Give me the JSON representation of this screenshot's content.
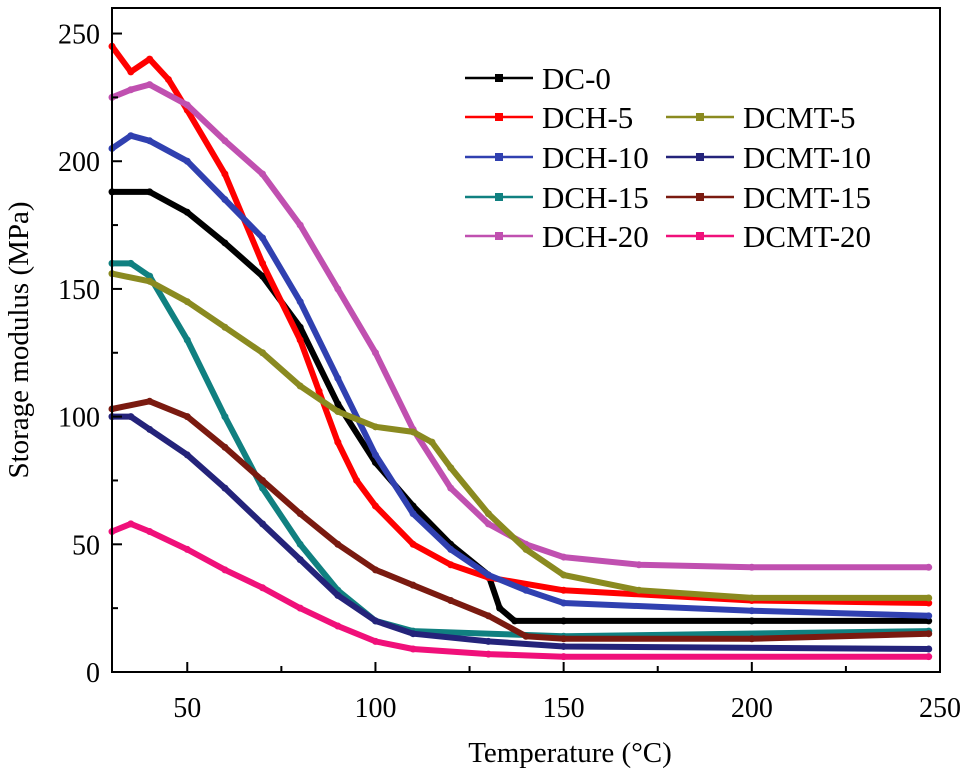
{
  "chart_data": {
    "type": "line",
    "title": "",
    "xlabel": "Temperature (°C)",
    "ylabel": "Storage modulus (MPa)",
    "xlim": [
      30,
      250
    ],
    "ylim": [
      0,
      260
    ],
    "xticks": [
      50,
      100,
      150,
      200,
      250
    ],
    "yticks": [
      0,
      50,
      100,
      150,
      200,
      250
    ],
    "grid": false,
    "legend_position": "top-right",
    "series": [
      {
        "name": "DC-0",
        "color": "#000000",
        "marker": "square",
        "x": [
          30,
          40,
          50,
          60,
          70,
          80,
          90,
          100,
          110,
          120,
          130,
          133,
          137,
          150,
          200,
          247
        ],
        "y": [
          188,
          188,
          180,
          168,
          155,
          135,
          105,
          82,
          65,
          50,
          38,
          25,
          20,
          20,
          20,
          20
        ]
      },
      {
        "name": "DCH-5",
        "color": "#ff0000",
        "marker": "circle",
        "x": [
          30,
          35,
          40,
          45,
          50,
          60,
          70,
          80,
          85,
          90,
          95,
          100,
          110,
          120,
          130,
          150,
          200,
          247
        ],
        "y": [
          245,
          235,
          240,
          232,
          220,
          195,
          160,
          130,
          110,
          90,
          75,
          65,
          50,
          42,
          37,
          32,
          28,
          27
        ]
      },
      {
        "name": "DCH-10",
        "color": "#3040b0",
        "marker": "triangle-up",
        "x": [
          30,
          35,
          40,
          50,
          60,
          70,
          80,
          90,
          100,
          110,
          120,
          130,
          140,
          150,
          200,
          247
        ],
        "y": [
          205,
          210,
          208,
          200,
          185,
          170,
          145,
          115,
          85,
          62,
          48,
          38,
          32,
          27,
          24,
          22
        ]
      },
      {
        "name": "DCH-15",
        "color": "#108080",
        "marker": "triangle-down",
        "x": [
          30,
          35,
          40,
          50,
          60,
          70,
          80,
          90,
          100,
          110,
          150,
          247
        ],
        "y": [
          160,
          160,
          155,
          130,
          100,
          72,
          50,
          32,
          20,
          16,
          14,
          16
        ]
      },
      {
        "name": "DCH-20",
        "color": "#c050b0",
        "marker": "triangle-left",
        "x": [
          30,
          35,
          40,
          50,
          60,
          70,
          80,
          90,
          100,
          110,
          120,
          130,
          140,
          150,
          170,
          200,
          247
        ],
        "y": [
          225,
          228,
          230,
          222,
          208,
          195,
          175,
          150,
          125,
          95,
          72,
          58,
          50,
          45,
          42,
          41,
          41
        ]
      },
      {
        "name": "DCMT-5",
        "color": "#8a8a20",
        "marker": "triangle-right",
        "x": [
          30,
          40,
          50,
          60,
          70,
          80,
          90,
          100,
          110,
          115,
          120,
          130,
          140,
          150,
          170,
          200,
          247
        ],
        "y": [
          156,
          153,
          145,
          135,
          125,
          112,
          102,
          96,
          94,
          90,
          80,
          62,
          48,
          38,
          32,
          29,
          29
        ]
      },
      {
        "name": "DCMT-10",
        "color": "#24237a",
        "marker": "diamond",
        "x": [
          30,
          35,
          40,
          50,
          60,
          70,
          80,
          90,
          100,
          110,
          130,
          150,
          247
        ],
        "y": [
          100,
          100,
          95,
          85,
          72,
          58,
          44,
          30,
          20,
          15,
          12,
          10,
          9
        ]
      },
      {
        "name": "DCMT-15",
        "color": "#7a1a10",
        "marker": "hexagon",
        "x": [
          30,
          40,
          50,
          60,
          70,
          80,
          90,
          100,
          110,
          120,
          130,
          140,
          150,
          200,
          247
        ],
        "y": [
          103,
          106,
          100,
          88,
          75,
          62,
          50,
          40,
          34,
          28,
          22,
          14,
          13,
          13,
          15
        ]
      },
      {
        "name": "DCMT-20",
        "color": "#f0107a",
        "marker": "circle",
        "x": [
          30,
          35,
          40,
          50,
          60,
          70,
          80,
          90,
          100,
          110,
          130,
          150,
          247
        ],
        "y": [
          55,
          58,
          55,
          48,
          40,
          33,
          25,
          18,
          12,
          9,
          7,
          6,
          6
        ]
      }
    ]
  }
}
